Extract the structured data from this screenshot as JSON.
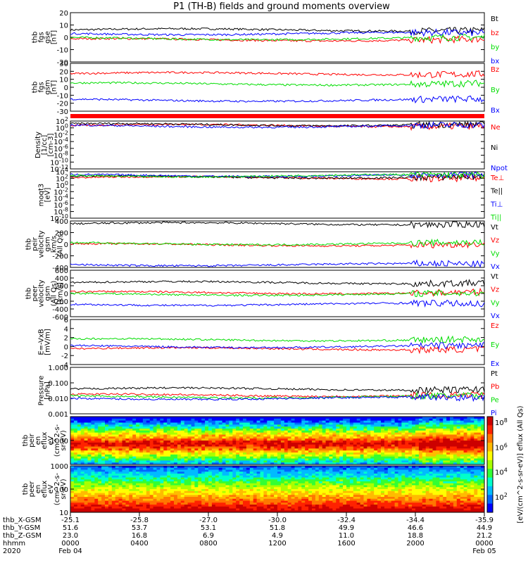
{
  "title": "P1 (TH-B) fields and ground moments overview",
  "colors": {
    "black": "#000000",
    "red": "#ff0000",
    "green": "#00dd00",
    "blue": "#0000ff"
  },
  "chart_data": [
    {
      "type": "line",
      "panel": "fgs_gse",
      "ylabel": [
        "thb",
        "fgs",
        "gse",
        "[nT]"
      ],
      "ylim": [
        -20,
        20
      ],
      "yticks": [
        "20",
        "10",
        "0",
        "-10",
        "-20"
      ],
      "series": [
        {
          "name": "Bt",
          "color": "black",
          "level": 6
        },
        {
          "name": "bz",
          "color": "red",
          "level": -2
        },
        {
          "name": "by",
          "color": "green",
          "level": -1
        },
        {
          "name": "bx",
          "color": "blue",
          "level": 3
        }
      ]
    },
    {
      "type": "line",
      "panel": "fgs_gsm",
      "ylabel": [
        "thb",
        "fgs",
        "gsm",
        "[nT]"
      ],
      "ylim": [
        -35,
        30
      ],
      "yticks": [
        "30",
        "20",
        "10",
        "0",
        "-10",
        "-20",
        "-30"
      ],
      "series": [
        {
          "name": "Bz",
          "color": "red",
          "level": 16
        },
        {
          "name": "By",
          "color": "green",
          "level": 2
        },
        {
          "name": "Bx",
          "color": "blue",
          "level": -20
        }
      ]
    },
    {
      "type": "line",
      "panel": "density",
      "ylabel": [
        "Density",
        "[1/cc]",
        "[cm-3]"
      ],
      "yscale": "log",
      "ylim": [
        -14,
        2
      ],
      "yticks": [
        "10^2",
        "10^0",
        "10^-2",
        "10^-4",
        "10^-6",
        "10^-8",
        "10^-10",
        "10^-12"
      ],
      "series": [
        {
          "name": "Ne",
          "color": "red",
          "level": 0.5
        },
        {
          "name": "Ni",
          "color": "black",
          "level": 0.8
        },
        {
          "name": "Npot",
          "color": "blue",
          "level": 0.3
        }
      ]
    },
    {
      "type": "line",
      "panel": "temperature",
      "ylabel": [
        "moqt3",
        "[eV]"
      ],
      "yscale": "log",
      "ylim": [
        -10,
        4
      ],
      "yticks": [
        "10^4",
        "10^2",
        "10^0",
        "10^-2",
        "10^-4",
        "10^-6",
        "10^-8",
        "10^-10"
      ],
      "series": [
        {
          "name": "Te⊥",
          "color": "red",
          "level": 2.2
        },
        {
          "name": "Te||",
          "color": "black",
          "level": 2.4
        },
        {
          "name": "Ti⊥",
          "color": "blue",
          "level": 2.9
        },
        {
          "name": "Ti||",
          "color": "green",
          "level": 2.8
        }
      ]
    },
    {
      "type": "line",
      "panel": "pi_velocity",
      "ylabel": [
        "thb",
        "peir",
        "velocity",
        "gsm",
        "km/s",
        "(All Qs)"
      ],
      "ylim": [
        -420,
        420
      ],
      "yticks": [
        "400",
        "200",
        "0",
        "-200",
        "-400"
      ],
      "series": [
        {
          "name": "Vt",
          "color": "black",
          "level": 370
        },
        {
          "name": "Vz",
          "color": "red",
          "level": -10
        },
        {
          "name": "Vy",
          "color": "green",
          "level": 10
        },
        {
          "name": "Vx",
          "color": "blue",
          "level": -370
        }
      ]
    },
    {
      "type": "line",
      "panel": "pe_velocity",
      "ylabel": [
        "thb",
        "peer",
        "velocity",
        "gsm",
        "(All Qs)",
        "[km/s]"
      ],
      "ylim": [
        -600,
        600
      ],
      "yticks": [
        "600",
        "400",
        "200",
        "0",
        "-200",
        "-400",
        "-600"
      ],
      "series": [
        {
          "name": "Vt",
          "color": "black",
          "level": 280
        },
        {
          "name": "Vz",
          "color": "red",
          "level": 20
        },
        {
          "name": "Vy",
          "color": "green",
          "level": -20
        },
        {
          "name": "Vx",
          "color": "blue",
          "level": -280
        }
      ]
    },
    {
      "type": "line",
      "panel": "efield",
      "ylabel": [
        "E=-VxB",
        "[mV/m]"
      ],
      "ylim": [
        -4,
        6
      ],
      "yticks": [
        "6",
        "4",
        "2",
        "0",
        "-2",
        "-4"
      ],
      "series": [
        {
          "name": "Ez",
          "color": "red",
          "level": -0.5
        },
        {
          "name": "Ey",
          "color": "green",
          "level": 1.5
        },
        {
          "name": "Ex",
          "color": "blue",
          "level": 0
        }
      ]
    },
    {
      "type": "line",
      "panel": "pressure",
      "ylabel": [
        "Pressure",
        "[nPa]"
      ],
      "yscale": "log",
      "ylim": [
        -3,
        0
      ],
      "yticks": [
        "1.000",
        "0.100",
        "0.010",
        "0.001"
      ],
      "series": [
        {
          "name": "Pt",
          "color": "black",
          "level": -1.4
        },
        {
          "name": "Pb",
          "color": "red",
          "level": -1.8
        },
        {
          "name": "Pe",
          "color": "green",
          "level": -1.9
        },
        {
          "name": "Pi",
          "color": "blue",
          "level": -2.0
        }
      ]
    },
    {
      "type": "heatmap",
      "panel": "ion_spectrogram",
      "ylabel": [
        "thb",
        "peir",
        "en",
        "eflux",
        "eV",
        "(cm^2-s-",
        "sr-eV)"
      ],
      "yticks": [
        "1000"
      ]
    },
    {
      "type": "heatmap",
      "panel": "electron_spectrogram",
      "ylabel": [
        "thb",
        "peer",
        "en",
        "eflux",
        "eV",
        "(cm^2-s-",
        "sr-eV)"
      ],
      "yticks": [
        "1000",
        "100",
        "10"
      ]
    }
  ],
  "colorbar": {
    "ticks": [
      "10^8",
      "10^6",
      "10^4",
      "10^2"
    ],
    "label": "[eV/(cm^2-s-sr-eV)] eflux (All Qs)"
  },
  "footer": {
    "rows": [
      {
        "label": "thb_X-GSM",
        "values": [
          "-25.1",
          "-25.8",
          "-27.0",
          "-30.0",
          "-32.4",
          "-34.4",
          "-35.9"
        ]
      },
      {
        "label": "thb_Y-GSM",
        "values": [
          "51.6",
          "53.7",
          "53.1",
          "51.8",
          "49.9",
          "46.6",
          "44.9"
        ]
      },
      {
        "label": "thb_Z-GSM",
        "values": [
          "23.0",
          "16.8",
          "6.9",
          "4.9",
          "11.0",
          "18.8",
          "21.2"
        ]
      },
      {
        "label": "hhmm",
        "values": [
          "0000",
          "0400",
          "0800",
          "1200",
          "1600",
          "2000",
          "0000"
        ]
      }
    ],
    "year": "2020",
    "dates": [
      "Feb 04",
      "Feb 05"
    ]
  }
}
